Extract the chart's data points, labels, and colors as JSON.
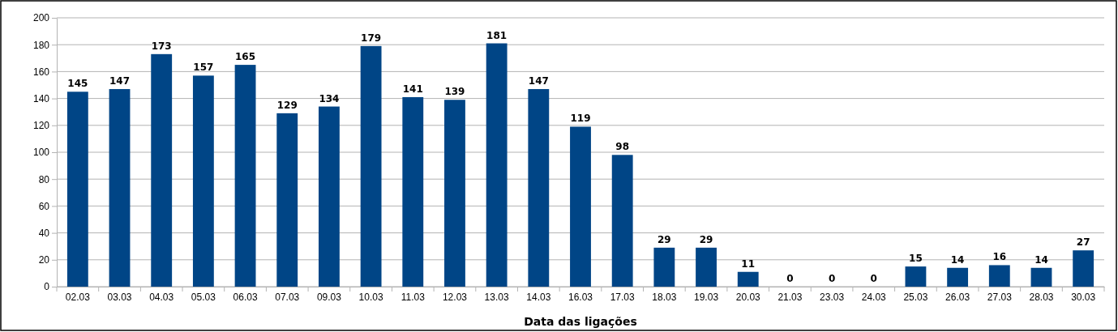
{
  "chart_data": {
    "type": "bar",
    "xlabel": "Data das ligações",
    "categories": [
      "02.03",
      "03.03",
      "04.03",
      "05.03",
      "06.03",
      "07.03",
      "09.03",
      "10.03",
      "11.03",
      "12.03",
      "13.03",
      "14.03",
      "16.03",
      "17.03",
      "18.03",
      "19.03",
      "20.03",
      "21.03",
      "23.03",
      "24.03",
      "25.03",
      "26.03",
      "27.03",
      "28.03",
      "30.03"
    ],
    "values": [
      145,
      147,
      173,
      157,
      165,
      129,
      134,
      179,
      141,
      139,
      181,
      147,
      119,
      98,
      29,
      29,
      11,
      0,
      0,
      0,
      15,
      14,
      16,
      14,
      27
    ],
    "color": "#004586",
    "ylim": [
      0,
      200
    ],
    "yticks": [
      0,
      20,
      40,
      60,
      80,
      100,
      120,
      140,
      160,
      180,
      200
    ],
    "grid": "y",
    "data_labels": true
  }
}
